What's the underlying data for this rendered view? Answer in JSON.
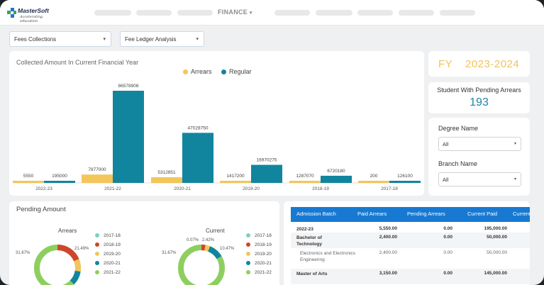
{
  "header": {
    "logo_name": "MasterSoft",
    "logo_tag": "Accelerating education",
    "menu_active": "FINANCE",
    "menu_caret": "▾"
  },
  "filters_top": {
    "report": "Fees Collections",
    "analysis": "Fee Ledger Analysis",
    "caret": "▾"
  },
  "fy": {
    "label": "FY",
    "year": "2023-2024"
  },
  "pending_arrears": {
    "title": "Student With Pending Arrears",
    "count": "193"
  },
  "side_filters": {
    "degree_label": "Degree Name",
    "degree_value": "All",
    "branch_label": "Branch Name",
    "branch_value": "All",
    "caret": "▾"
  },
  "colors": {
    "arrears": "#f3c55b",
    "regular": "#11859e",
    "header": "#1779d2"
  },
  "chart_data": {
    "type": "bar",
    "title": "Collected Amount In Current Financial Year",
    "categories": [
      "2022-23",
      "2021-22",
      "2020-21",
      "2019-20",
      "2018-19",
      "2017-18"
    ],
    "series": [
      {
        "name": "Arrears",
        "values": [
          5550,
          7877000,
          5312851,
          1417200,
          1287070,
          200
        ],
        "labels": [
          "5550",
          "7877000",
          "5312851",
          "1417200",
          "1287070",
          "200"
        ]
      },
      {
        "name": "Regular",
        "values": [
          195000,
          86578908,
          47028750,
          16970275,
          6720180,
          126100
        ],
        "labels": [
          "195000",
          "86578908",
          "47028750",
          "16970275",
          "6720180",
          "126100"
        ]
      }
    ],
    "legend": "top-center"
  },
  "pending": {
    "title": "Pending Amount",
    "arrears_title": "Arrears",
    "current_title": "Current",
    "arrears_labels": {
      "left": "31.67%",
      "right": "21.49%"
    },
    "current_labels": {
      "left": "31.67%",
      "top1": "0.07%",
      "top2": "2.42%",
      "right": "10.47%"
    },
    "legend": [
      {
        "label": "2017-18",
        "color": "#7fcfc3"
      },
      {
        "label": "2018-19",
        "color": "#d0452a"
      },
      {
        "label": "2019-20",
        "color": "#f3c55b"
      },
      {
        "label": "2020-21",
        "color": "#11859e"
      },
      {
        "label": "2021-22",
        "color": "#8dcf5f"
      }
    ]
  },
  "table": {
    "headers": [
      "Admission Batch",
      "Paid Arrears",
      "Pending Arrears",
      "Current Paid",
      "Current"
    ],
    "rows": [
      {
        "name": "2022-23",
        "paid": "5,550.00",
        "pending": "0.00",
        "current_paid": "195,000.00",
        "bold": true
      },
      {
        "name": "Bachelor of Technology",
        "paid": "2,400.00",
        "pending": "0.00",
        "current_paid": "50,000.00",
        "bold": true
      },
      {
        "name": "Electronics and Electronics Engineering",
        "paid": "2,400.00",
        "pending": "0.00",
        "current_paid": "50,000.00",
        "bold": false
      },
      {
        "name": "Master of Arts",
        "paid": "3,150.00",
        "pending": "0.00",
        "current_paid": "145,000.00",
        "bold": true
      }
    ]
  }
}
